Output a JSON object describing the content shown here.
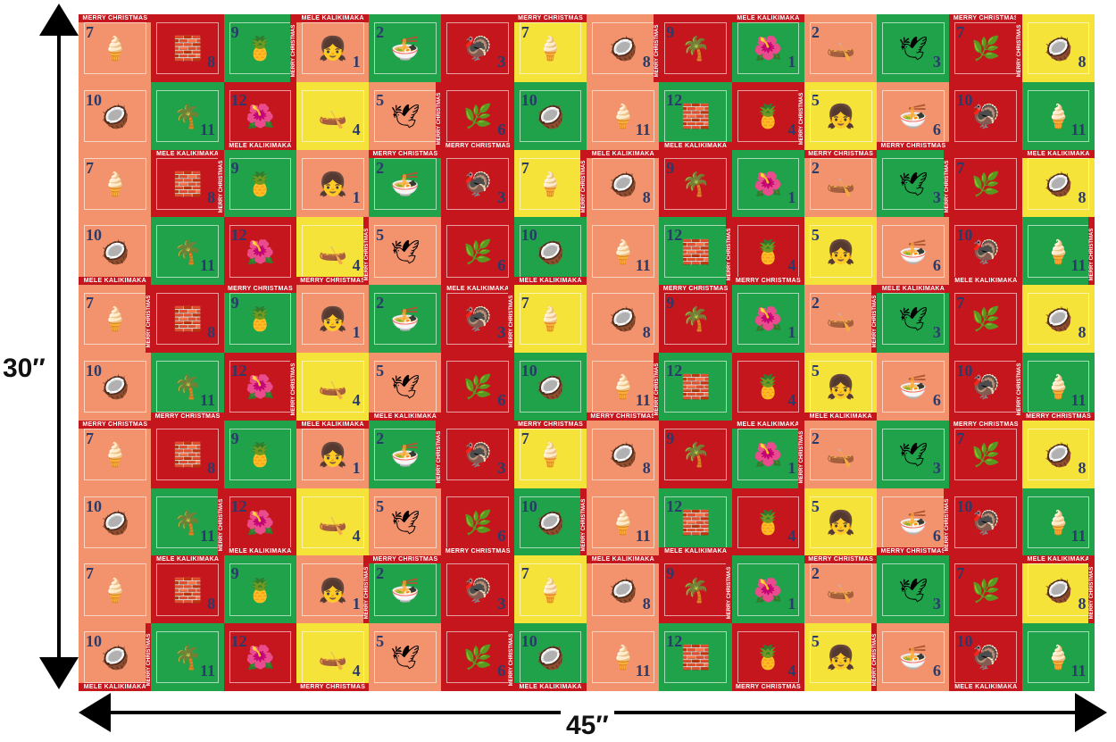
{
  "dimensions": {
    "height_label": "30″",
    "width_label": "45″"
  },
  "fabric": {
    "texts": {
      "mele": "MELE KALIKIMAKA",
      "merry": "MERRY CHRISTMAS"
    },
    "numbers": [
      "1",
      "2",
      "3",
      "4",
      "5",
      "6",
      "7",
      "8",
      "9",
      "10",
      "11",
      "12"
    ],
    "colors": {
      "red": "#c4161c",
      "green": "#1fa24a",
      "salmon": "#f2936e",
      "yellow": "#f6e33a",
      "orange": "#f5a623",
      "pink": "#f4b69c"
    }
  }
}
